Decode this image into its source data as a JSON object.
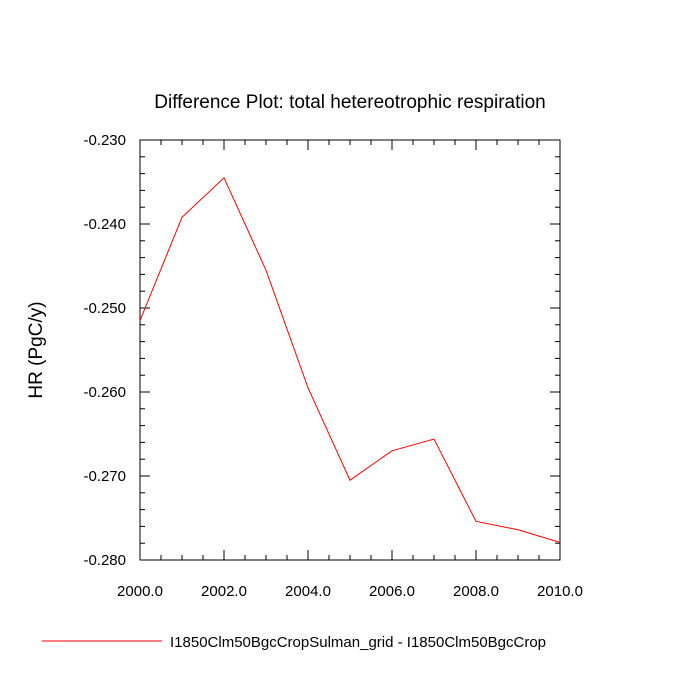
{
  "chart_data": {
    "type": "line",
    "title": "Difference Plot: total hetereotrophic respiration",
    "xlabel": "",
    "ylabel": "HR  (PgC/y)",
    "xlim": [
      2000.0,
      2010.0
    ],
    "ylim": [
      -0.28,
      -0.23
    ],
    "x_ticks": [
      "2000.0",
      "2002.0",
      "2004.0",
      "2006.0",
      "2008.0",
      "2010.0"
    ],
    "y_ticks": [
      "-0.230",
      "-0.240",
      "-0.250",
      "-0.260",
      "-0.270",
      "-0.280"
    ],
    "grid": false,
    "legend_position": "bottom",
    "series": [
      {
        "name": "I1850Clm50BgcCropSulman_grid - I1850Clm50BgcCrop",
        "color": "#ff0000",
        "x": [
          2000,
          2001,
          2002,
          2003,
          2004,
          2005,
          2006,
          2007,
          2008,
          2009,
          2010
        ],
        "y": [
          -0.2515,
          -0.2392,
          -0.2345,
          -0.2455,
          -0.2595,
          -0.2705,
          -0.267,
          -0.2656,
          -0.2754,
          -0.2764,
          -0.2779
        ]
      }
    ]
  }
}
